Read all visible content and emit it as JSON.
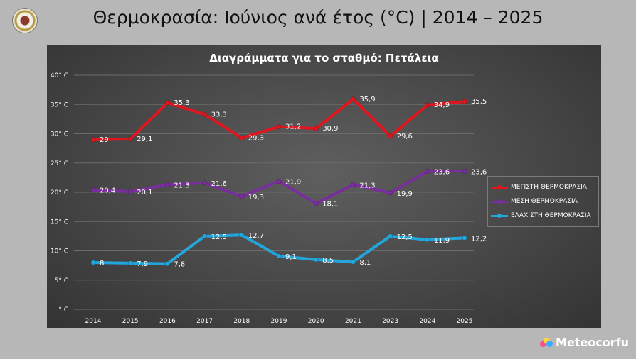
{
  "header": {
    "title": "Θερμοκρασία: Ιούνιος ανά έτος (°C) | 2014 – 2025"
  },
  "brand": {
    "name": "Meteocorfu"
  },
  "chart_data": {
    "type": "line",
    "title": "Διαγράμματα για το σταθμό: Πετάλεια",
    "categories": [
      "2014",
      "2015",
      "2016",
      "2017",
      "2018",
      "2019",
      "2020",
      "2021",
      "2023",
      "2024",
      "2025"
    ],
    "ylim": [
      0,
      40
    ],
    "yticks": [
      "° C",
      "5° C",
      "10° C",
      "15° C",
      "20° C",
      "25° C",
      "30° C",
      "35° C",
      "40° C"
    ],
    "grid": true,
    "legend_position": "right",
    "series": [
      {
        "name": "ΜΕΓΙΣΤΗ ΘΕΡΜΟΚΡΑΣΙΑ",
        "color": "#e0161e",
        "values": [
          29,
          29.1,
          35.3,
          33.3,
          29.3,
          31.2,
          30.9,
          35.9,
          29.6,
          34.9,
          35.5
        ],
        "labels": [
          "29",
          "29,1",
          "35,3",
          "33,3",
          "29,3",
          "31,2",
          "30,9",
          "35,9",
          "29,6",
          "34,9",
          "35,5"
        ]
      },
      {
        "name": "ΜΕΣΗ ΘΕΡΜΟΚΡΑΣΙΑ",
        "color": "#7a2d9c",
        "values": [
          20.4,
          20.1,
          21.3,
          21.6,
          19.3,
          21.9,
          18.1,
          21.3,
          19.9,
          23.6,
          23.6
        ],
        "labels": [
          "20,4",
          "20,1",
          "21,3",
          "21,6",
          "19,3",
          "21,9",
          "18,1",
          "21,3",
          "19,9",
          "23,6",
          "23,6"
        ]
      },
      {
        "name": "ΕΛΑΧΙΣΤΗ ΘΕΡΜΟΚΡΑΣΙΑ",
        "color": "#23a6dc",
        "values": [
          8,
          7.9,
          7.8,
          12.5,
          12.7,
          9.1,
          8.5,
          8.1,
          12.5,
          11.9,
          12.2
        ],
        "labels": [
          "8",
          "7,9",
          "7,8",
          "12,5",
          "12,7",
          "9,1",
          "8,5",
          "8,1",
          "12,5",
          "11,9",
          "12,2"
        ]
      }
    ]
  }
}
